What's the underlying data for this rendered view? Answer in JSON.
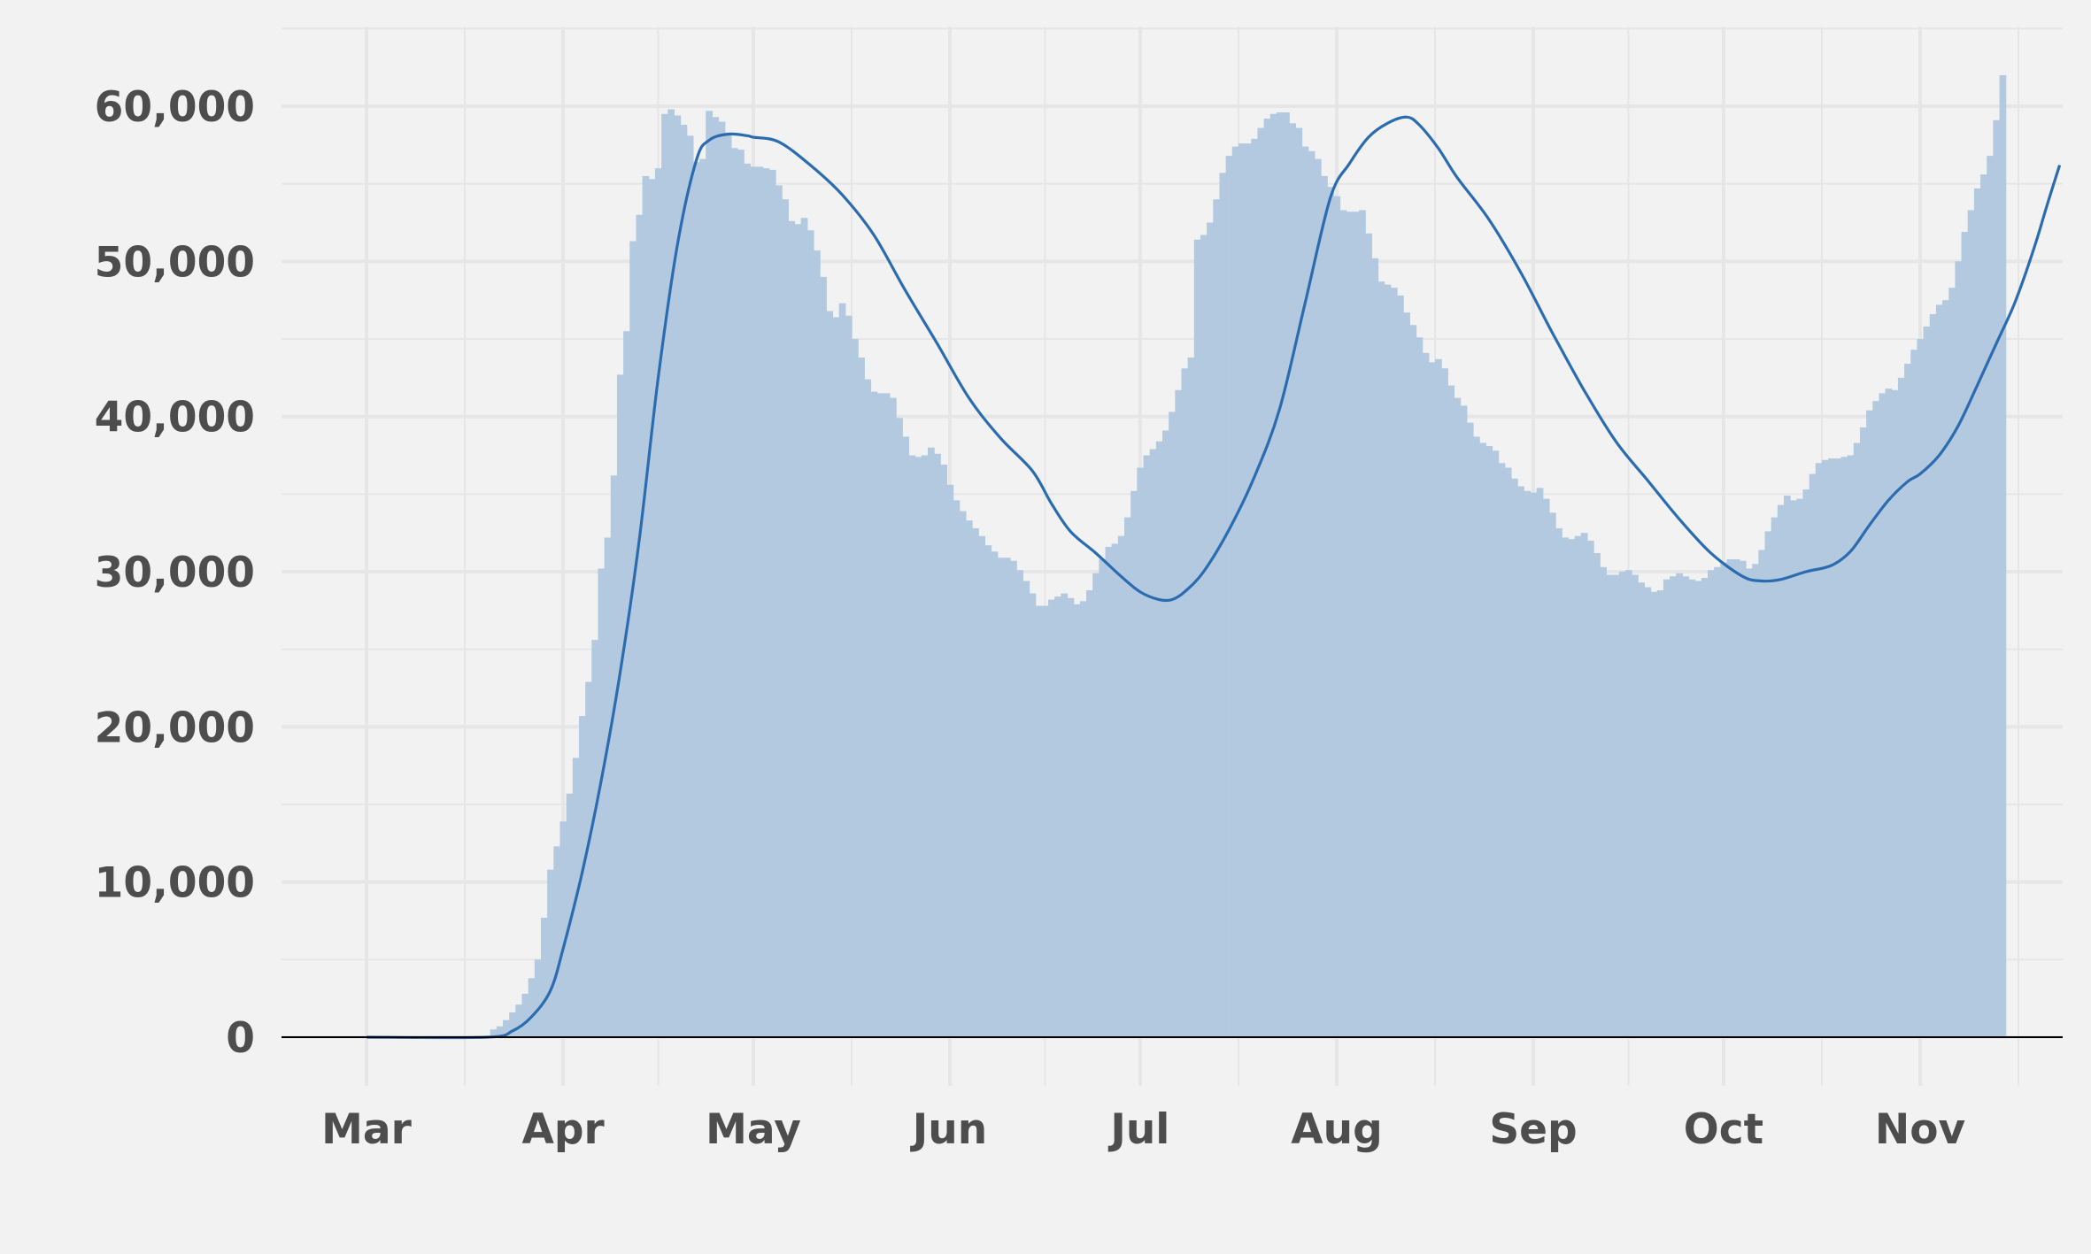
{
  "chart_data": {
    "type": "bar",
    "title": "",
    "xlabel": "",
    "ylabel": "",
    "ylim": [
      0,
      65000
    ],
    "grid": true,
    "legend": "none",
    "x_ticks": [
      "Mar",
      "Apr",
      "May",
      "Jun",
      "Jul",
      "Aug",
      "Sep",
      "Oct",
      "Nov"
    ],
    "y_ticks": [
      "0",
      "10,000",
      "20,000",
      "30,000",
      "40,000",
      "50,000",
      "60,000"
    ],
    "y_tick_values": [
      0,
      10000,
      20000,
      30000,
      40000,
      50000,
      60000
    ],
    "x_range": [
      "2020-02-21",
      "2020-11-20"
    ],
    "x_tick_dates": [
      "2020-03-01",
      "2020-04-01",
      "2020-05-01",
      "2020-06-01",
      "2020-07-01",
      "2020-08-01",
      "2020-09-01",
      "2020-10-01",
      "2020-11-01"
    ],
    "colors": {
      "bars": "#b3c9e0",
      "line": "#2b6cb0",
      "baseline": "#000000",
      "grid": "#e6e6e6",
      "background": "#f2f2f2"
    },
    "bar_series": {
      "name": "",
      "start_date": "2020-03-01",
      "values": [
        0,
        0,
        0,
        0,
        0,
        0,
        0,
        0,
        0,
        0,
        0,
        0,
        0,
        0,
        0,
        0,
        0,
        0,
        0,
        0,
        500,
        700,
        1100,
        1600,
        2100,
        2800,
        3800,
        5000,
        7700,
        10800,
        12300,
        13900,
        15700,
        18000,
        20700,
        22900,
        25600,
        30200,
        32200,
        36200,
        42700,
        45500,
        51300,
        53000,
        55500,
        55300,
        56000,
        59500,
        59800,
        59400,
        58800,
        58100,
        56400,
        56600,
        59700,
        59300,
        59000,
        58300,
        57300,
        57200,
        56300,
        56100,
        56100,
        56000,
        55900,
        54900,
        54000,
        52600,
        52400,
        52800,
        52000,
        50700,
        49000,
        46800,
        46400,
        47300,
        46500,
        45000,
        43800,
        42400,
        41600,
        41500,
        41500,
        41200,
        39900,
        38700,
        37500,
        37400,
        37500,
        38000,
        37600,
        36900,
        35600,
        34600,
        33900,
        33300,
        32800,
        32300,
        31700,
        31300,
        30900,
        30900,
        30700,
        30100,
        29400,
        28600,
        27800,
        27800,
        28200,
        28400,
        28600,
        28300,
        27900,
        28100,
        28800,
        29900,
        30800,
        31600,
        31800,
        32300,
        33500,
        35200,
        36700,
        37500,
        37900,
        38400,
        39100,
        40300,
        41700,
        43100,
        43800,
        51400,
        51700,
        52500,
        54000,
        55700,
        56800,
        57400,
        57600,
        57600,
        57900,
        58600,
        59200,
        59500,
        59600,
        59600,
        58900,
        58600,
        57400,
        57100,
        56600,
        55500,
        54800,
        54200,
        53300,
        53200,
        53200,
        53300,
        51800,
        50200,
        48700,
        48500,
        48300,
        47800,
        46700,
        45900,
        45100,
        44100,
        43500,
        43700,
        43100,
        42000,
        41200,
        40700,
        39600,
        38700,
        38300,
        38100,
        37800,
        37000,
        36700,
        36000,
        35500,
        35200,
        35100,
        35400,
        34700,
        33800,
        32800,
        32200,
        32100,
        32300,
        32500,
        32000,
        31200,
        30300,
        29800,
        29800,
        30000,
        30100,
        29800,
        29300,
        29000,
        28700,
        28800,
        29500,
        29700,
        29900,
        29700,
        29500,
        29400,
        29600,
        30100,
        30300,
        30600,
        30800,
        30800,
        30700,
        30200,
        30500,
        31400,
        32600,
        33500,
        34300,
        34900,
        34600,
        34700,
        35300,
        36300,
        37000,
        37200,
        37300,
        37300,
        37400,
        37500,
        38300,
        39300,
        40400,
        41000,
        41500,
        41800,
        41700,
        42500,
        43400,
        44300,
        45000,
        45800,
        46600,
        47200,
        47500,
        48300,
        50000,
        51900,
        53300,
        54700,
        55600,
        56800,
        59100,
        62000
      ]
    },
    "line_series": {
      "name": "",
      "points": [
        [
          "2020-03-01",
          0
        ],
        [
          "2020-03-20",
          0
        ],
        [
          "2020-03-24",
          400
        ],
        [
          "2020-03-27",
          1300
        ],
        [
          "2020-03-30",
          3000
        ],
        [
          "2020-04-01",
          5700
        ],
        [
          "2020-04-04",
          10600
        ],
        [
          "2020-04-07",
          16500
        ],
        [
          "2020-04-10",
          23500
        ],
        [
          "2020-04-13",
          32000
        ],
        [
          "2020-04-16",
          42500
        ],
        [
          "2020-04-19",
          51000
        ],
        [
          "2020-04-22",
          56500
        ],
        [
          "2020-04-24",
          57800
        ],
        [
          "2020-04-27",
          58200
        ],
        [
          "2020-04-30",
          58100
        ],
        [
          "2020-05-01",
          58000
        ],
        [
          "2020-05-05",
          57700
        ],
        [
          "2020-05-10",
          56200
        ],
        [
          "2020-05-15",
          54300
        ],
        [
          "2020-05-20",
          51700
        ],
        [
          "2020-05-25",
          48100
        ],
        [
          "2020-05-30",
          44700
        ],
        [
          "2020-06-04",
          41200
        ],
        [
          "2020-06-09",
          38600
        ],
        [
          "2020-06-14",
          36500
        ],
        [
          "2020-06-17",
          34400
        ],
        [
          "2020-06-20",
          32600
        ],
        [
          "2020-06-24",
          31200
        ],
        [
          "2020-06-28",
          29700
        ],
        [
          "2020-07-01",
          28700
        ],
        [
          "2020-07-04",
          28200
        ],
        [
          "2020-07-06",
          28200
        ],
        [
          "2020-07-08",
          28700
        ],
        [
          "2020-07-11",
          30000
        ],
        [
          "2020-07-15",
          32700
        ],
        [
          "2020-07-19",
          36100
        ],
        [
          "2020-07-23",
          40500
        ],
        [
          "2020-07-27",
          47300
        ],
        [
          "2020-07-31",
          54100
        ],
        [
          "2020-08-03",
          56300
        ],
        [
          "2020-08-06",
          58000
        ],
        [
          "2020-08-09",
          58900
        ],
        [
          "2020-08-12",
          59300
        ],
        [
          "2020-08-14",
          58800
        ],
        [
          "2020-08-17",
          57300
        ],
        [
          "2020-08-20",
          55400
        ],
        [
          "2020-08-25",
          52700
        ],
        [
          "2020-08-30",
          49300
        ],
        [
          "2020-09-04",
          45400
        ],
        [
          "2020-09-09",
          41700
        ],
        [
          "2020-09-14",
          38400
        ],
        [
          "2020-09-19",
          35900
        ],
        [
          "2020-09-24",
          33400
        ],
        [
          "2020-09-29",
          31200
        ],
        [
          "2020-10-04",
          29700
        ],
        [
          "2020-10-07",
          29400
        ],
        [
          "2020-10-10",
          29500
        ],
        [
          "2020-10-14",
          30000
        ],
        [
          "2020-10-18",
          30400
        ],
        [
          "2020-10-21",
          31300
        ],
        [
          "2020-10-24",
          33000
        ],
        [
          "2020-10-27",
          34600
        ],
        [
          "2020-10-30",
          35800
        ],
        [
          "2020-11-01",
          36300
        ],
        [
          "2020-11-04",
          37500
        ],
        [
          "2020-11-07",
          39400
        ],
        [
          "2020-11-10",
          42000
        ],
        [
          "2020-11-13",
          44700
        ],
        [
          "2020-11-16",
          47400
        ],
        [
          "2020-11-19",
          50900
        ],
        [
          "2020-11-21",
          53600
        ],
        [
          "2020-11-23",
          56200
        ]
      ]
    }
  }
}
